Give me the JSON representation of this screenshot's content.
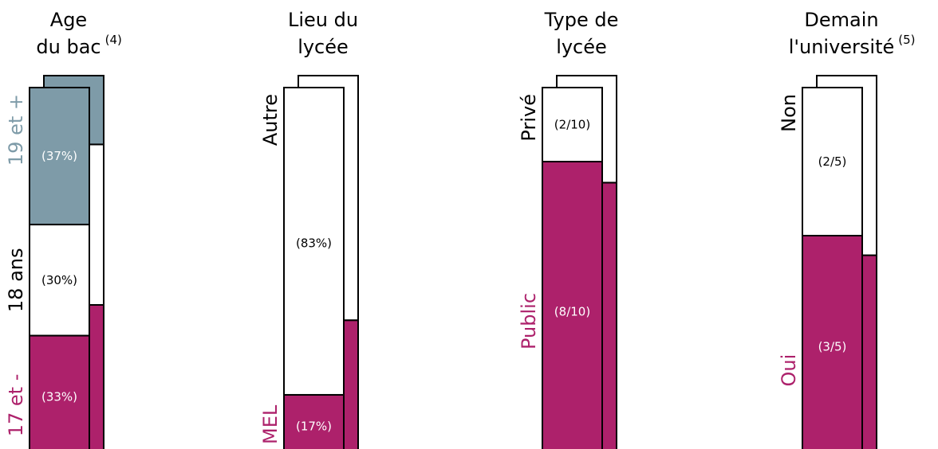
{
  "colors": {
    "magenta": "#ad216b",
    "gray": "#7e9ba8",
    "white": "#ffffff",
    "black": "#000000"
  },
  "chart_data": [
    {
      "type": "bar",
      "stacked": true,
      "title": "Age",
      "title_line2": "du bac",
      "title_note": "(4)",
      "segments": [
        {
          "label": "17 et -",
          "value": 33,
          "display": "(33%)",
          "fill": "#ad216b",
          "label_color": "#ad216b",
          "text_color": "#ffffff"
        },
        {
          "label": "18 ans",
          "value": 30,
          "display": "(30%)",
          "fill": "#ffffff",
          "label_color": "#000000",
          "text_color": "#000000"
        },
        {
          "label": "19 et +",
          "value": 37,
          "display": "(37%)",
          "fill": "#7e9ba8",
          "label_color": "#7e9ba8",
          "text_color": "#ffffff"
        }
      ],
      "shadow_segments": [
        {
          "value": 40,
          "fill": "#ad216b"
        },
        {
          "value": 42,
          "fill": "#ffffff"
        },
        {
          "value": 18,
          "fill": "#7e9ba8"
        }
      ]
    },
    {
      "type": "bar",
      "stacked": true,
      "title": "Lieu du",
      "title_line2": "lycée",
      "title_note": "",
      "segments": [
        {
          "label": "MEL",
          "value": 17,
          "display": "(17%)",
          "fill": "#ad216b",
          "label_color": "#ad216b",
          "text_color": "#ffffff"
        },
        {
          "label": "Autre",
          "value": 83,
          "display": "(83%)",
          "fill": "#ffffff",
          "label_color": "#000000",
          "text_color": "#000000"
        }
      ],
      "shadow_segments": [
        {
          "value": 36,
          "fill": "#ad216b"
        },
        {
          "value": 64,
          "fill": "#ffffff"
        }
      ]
    },
    {
      "type": "bar",
      "stacked": true,
      "title": "Type de",
      "title_line2": "lycée",
      "title_note": "",
      "segments": [
        {
          "label": "Public",
          "value": 8,
          "display": "(8/10)",
          "fill": "#ad216b",
          "label_color": "#ad216b",
          "text_color": "#ffffff"
        },
        {
          "label": "Privé",
          "value": 2,
          "display": "(2/10)",
          "fill": "#ffffff",
          "label_color": "#000000",
          "text_color": "#000000"
        }
      ],
      "shadow_segments": [
        {
          "value": 7.2,
          "fill": "#ad216b"
        },
        {
          "value": 2.8,
          "fill": "#ffffff"
        }
      ]
    },
    {
      "type": "bar",
      "stacked": true,
      "title": "Demain",
      "title_line2": "l'université",
      "title_note": "(5)",
      "segments": [
        {
          "label": "Oui",
          "value": 3,
          "display": "(3/5)",
          "fill": "#ad216b",
          "label_color": "#ad216b",
          "text_color": "#ffffff"
        },
        {
          "label": "Non",
          "value": 2,
          "display": "(2/5)",
          "fill": "#ffffff",
          "label_color": "#000000",
          "text_color": "#000000"
        }
      ],
      "shadow_segments": [
        {
          "value": 2.65,
          "fill": "#ad216b"
        },
        {
          "value": 2.35,
          "fill": "#ffffff"
        }
      ]
    }
  ]
}
